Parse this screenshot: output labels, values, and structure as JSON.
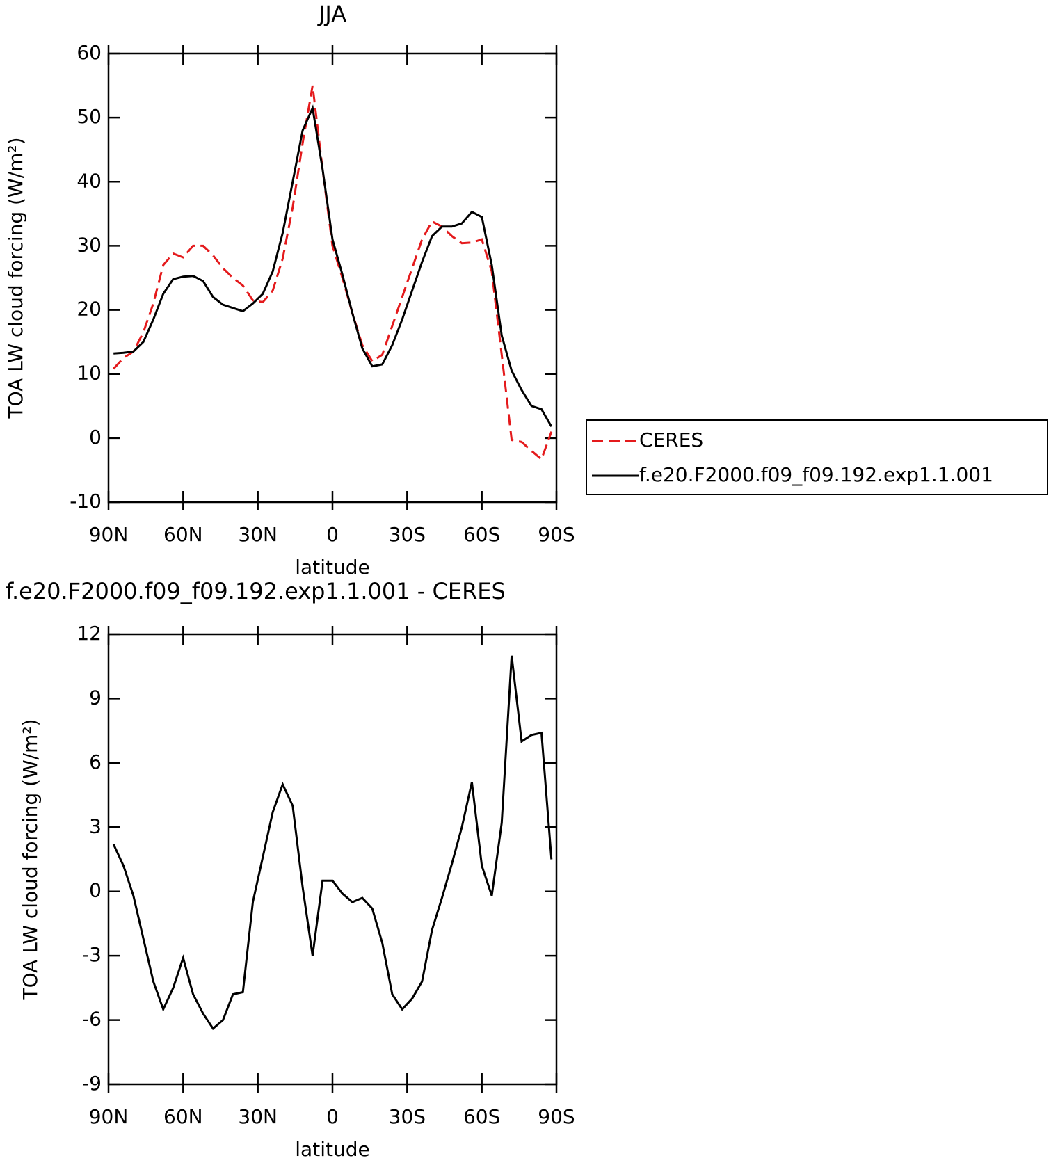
{
  "chart_data": [
    {
      "type": "line",
      "title": "JJA",
      "xlabel": "latitude",
      "ylabel": "TOA LW cloud forcing (W/m²)",
      "x": [
        88,
        84,
        80,
        76,
        72,
        68,
        64,
        60,
        56,
        52,
        48,
        44,
        40,
        36,
        32,
        28,
        24,
        20,
        16,
        12,
        8,
        4,
        0,
        -4,
        -8,
        -12,
        -16,
        -20,
        -24,
        -28,
        -32,
        -36,
        -40,
        -44,
        -48,
        -52,
        -56,
        -60,
        -64,
        -68,
        -72,
        -76,
        -80,
        -84,
        -88
      ],
      "xlim": [
        90,
        -90
      ],
      "xticks": [
        {
          "value": 90,
          "label": "90N"
        },
        {
          "value": 60,
          "label": "60N"
        },
        {
          "value": 30,
          "label": "30N"
        },
        0,
        {
          "value": -30,
          "label": "30S"
        },
        {
          "value": -60,
          "label": "60S"
        },
        {
          "value": -90,
          "label": "90S"
        }
      ],
      "ylim": [
        -10,
        60
      ],
      "yticks": [
        -10,
        0,
        10,
        20,
        30,
        40,
        50,
        60
      ],
      "legend": true,
      "series": [
        {
          "name": "CERES",
          "color": "#e41a1c",
          "dash": true,
          "values": [
            10.8,
            12.5,
            13.5,
            16.5,
            21,
            27,
            28.8,
            28.2,
            30,
            30,
            28.5,
            26.5,
            25,
            23.8,
            21.5,
            21.2,
            23,
            28,
            36,
            46,
            55,
            42,
            30,
            25,
            19.5,
            14.5,
            12,
            13,
            17.5,
            22,
            26.5,
            31,
            33.8,
            33,
            31.5,
            30.4,
            30.5,
            31,
            26,
            13,
            -0.3,
            -0.6,
            -2,
            -3.3,
            1
          ]
        },
        {
          "name": "f.e20.F2000.f09_f09.192.exp1.1.001",
          "color": "#000000",
          "dash": false,
          "values": [
            13.2,
            13.3,
            13.5,
            15,
            18.5,
            22.5,
            24.8,
            25.2,
            25.3,
            24.5,
            22,
            20.8,
            20.3,
            19.8,
            21,
            22.5,
            26,
            32,
            40,
            48,
            51.5,
            42,
            31,
            25.5,
            19.5,
            14,
            11.2,
            11.5,
            14.5,
            18.5,
            23,
            27.5,
            31.5,
            33,
            33,
            33.5,
            35.3,
            34.5,
            27,
            16,
            10.5,
            7.5,
            5,
            4.5,
            1.8
          ]
        }
      ]
    },
    {
      "type": "line",
      "title": "f.e20.F2000.f09_f09.192.exp1.1.001 - CERES",
      "xlabel": "latitude",
      "ylabel": "TOA LW cloud forcing (W/m²)",
      "x": [
        88,
        84,
        80,
        76,
        72,
        68,
        64,
        60,
        56,
        52,
        48,
        44,
        40,
        36,
        32,
        28,
        24,
        20,
        16,
        12,
        8,
        4,
        0,
        -4,
        -8,
        -12,
        -16,
        -20,
        -24,
        -28,
        -32,
        -36,
        -40,
        -44,
        -48,
        -52,
        -56,
        -60,
        -64,
        -68,
        -72,
        -76,
        -80,
        -84,
        -88
      ],
      "xlim": [
        90,
        -90
      ],
      "xticks": [
        {
          "value": 90,
          "label": "90N"
        },
        {
          "value": 60,
          "label": "60N"
        },
        {
          "value": 30,
          "label": "30N"
        },
        0,
        {
          "value": -30,
          "label": "30S"
        },
        {
          "value": -60,
          "label": "60S"
        },
        {
          "value": -90,
          "label": "90S"
        }
      ],
      "ylim": [
        -9,
        12
      ],
      "yticks": [
        -9,
        -6,
        -3,
        0,
        3,
        6,
        9,
        12
      ],
      "legend": false,
      "series": [
        {
          "color": "#000000",
          "dash": false,
          "values": [
            2.2,
            1.2,
            -0.2,
            -2.2,
            -4.2,
            -5.5,
            -4.5,
            -3.1,
            -4.8,
            -5.7,
            -6.4,
            -6,
            -4.8,
            -4.7,
            -0.5,
            1.6,
            3.7,
            5,
            4,
            0.2,
            -3,
            0.5,
            0.5,
            -0.1,
            -0.5,
            -0.3,
            -0.8,
            -2.4,
            -4.8,
            -5.5,
            -5,
            -4.2,
            -1.8,
            -0.3,
            1.3,
            3,
            5.1,
            1.2,
            -0.2,
            3.2,
            11,
            7,
            7.3,
            7.4,
            1.5
          ]
        }
      ]
    }
  ]
}
